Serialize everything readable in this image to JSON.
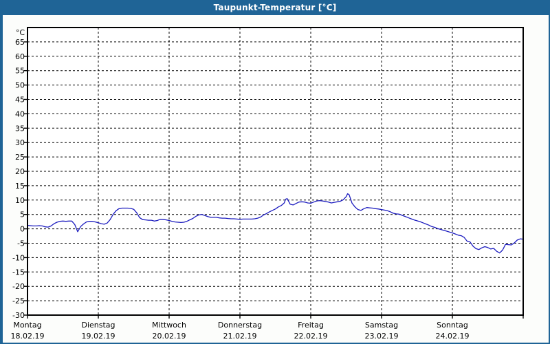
{
  "window": {
    "title": "Taupunkt-Temperatur [°C]"
  },
  "colors": {
    "titlebar_bg": "#1f6496",
    "titlebar_text": "#ffffff",
    "frame_border": "#1f6496",
    "page_bg": "#fcfdfb",
    "plot_bg": "#ffffff",
    "grid": "#000000",
    "axis": "#000000",
    "label": "#000000",
    "line": "#1a1abe"
  },
  "chart_data": {
    "type": "line",
    "title": "Taupunkt-Temperatur [°C]",
    "unit_label": "°C",
    "ylabel": "°C",
    "xlabel": "",
    "ylim": [
      -30,
      70
    ],
    "ytick_step": 5,
    "yticks": [
      65,
      60,
      55,
      50,
      45,
      40,
      35,
      30,
      25,
      20,
      15,
      10,
      5,
      0,
      -5,
      -10,
      -15,
      -20,
      -25,
      -30
    ],
    "x_unit": "hours_from_monday_00",
    "xlim": [
      0,
      168
    ],
    "grid": "dashed",
    "legend": "none",
    "days": [
      {
        "name": "Montag",
        "date": "18.02.19"
      },
      {
        "name": "Dienstag",
        "date": "19.02.19"
      },
      {
        "name": "Mittwoch",
        "date": "20.02.19"
      },
      {
        "name": "Donnerstag",
        "date": "21.02.19"
      },
      {
        "name": "Freitag",
        "date": "22.02.19"
      },
      {
        "name": "Samstag",
        "date": "23.02.19"
      },
      {
        "name": "Sonntag",
        "date": "24.02.19"
      }
    ],
    "series": [
      {
        "name": "Taupunkt",
        "points": [
          [
            0,
            1.2
          ],
          [
            1,
            1.1
          ],
          [
            2,
            1.0
          ],
          [
            3,
            1.0
          ],
          [
            4,
            1.1
          ],
          [
            5,
            1.0
          ],
          [
            6,
            0.7
          ],
          [
            7,
            0.6
          ],
          [
            8,
            1.0
          ],
          [
            9,
            1.8
          ],
          [
            10,
            2.3
          ],
          [
            11,
            2.6
          ],
          [
            12,
            2.7
          ],
          [
            13,
            2.6
          ],
          [
            14,
            2.7
          ],
          [
            15,
            2.7
          ],
          [
            16,
            1.5
          ],
          [
            17,
            -1.0
          ],
          [
            18,
            0.8
          ],
          [
            19,
            1.7
          ],
          [
            20,
            2.4
          ],
          [
            21,
            2.6
          ],
          [
            22,
            2.6
          ],
          [
            23,
            2.4
          ],
          [
            24,
            2.1
          ],
          [
            25,
            1.8
          ],
          [
            26,
            1.6
          ],
          [
            27,
            2.0
          ],
          [
            28,
            3.2
          ],
          [
            29,
            5.0
          ],
          [
            30,
            6.3
          ],
          [
            31,
            7.0
          ],
          [
            32,
            7.2
          ],
          [
            33,
            7.2
          ],
          [
            34,
            7.2
          ],
          [
            35,
            7.1
          ],
          [
            36,
            6.8
          ],
          [
            37,
            5.6
          ],
          [
            38,
            3.9
          ],
          [
            39,
            3.2
          ],
          [
            40,
            3.1
          ],
          [
            41,
            3.0
          ],
          [
            42,
            3.0
          ],
          [
            43,
            2.7
          ],
          [
            44,
            2.9
          ],
          [
            45,
            3.3
          ],
          [
            46,
            3.3
          ],
          [
            47,
            3.1
          ],
          [
            48,
            2.9
          ],
          [
            49,
            2.6
          ],
          [
            50,
            2.4
          ],
          [
            51,
            2.3
          ],
          [
            52,
            2.2
          ],
          [
            53,
            2.3
          ],
          [
            54,
            2.6
          ],
          [
            55,
            3.1
          ],
          [
            56,
            3.6
          ],
          [
            57,
            4.3
          ],
          [
            58,
            4.8
          ],
          [
            59,
            5.0
          ],
          [
            60,
            4.7
          ],
          [
            61,
            4.3
          ],
          [
            62,
            4.0
          ],
          [
            63,
            4.0
          ],
          [
            64,
            4.0
          ],
          [
            65,
            3.8
          ],
          [
            66,
            3.7
          ],
          [
            67,
            3.7
          ],
          [
            68,
            3.6
          ],
          [
            69,
            3.5
          ],
          [
            70,
            3.5
          ],
          [
            71,
            3.4
          ],
          [
            72,
            3.3
          ],
          [
            73,
            3.4
          ],
          [
            74,
            3.4
          ],
          [
            75,
            3.4
          ],
          [
            76,
            3.4
          ],
          [
            77,
            3.5
          ],
          [
            78,
            3.7
          ],
          [
            79,
            4.1
          ],
          [
            80,
            4.8
          ],
          [
            81,
            5.3
          ],
          [
            82,
            5.9
          ],
          [
            83,
            6.4
          ],
          [
            84,
            6.9
          ],
          [
            85,
            7.6
          ],
          [
            86,
            8.1
          ],
          [
            87,
            9.0
          ],
          [
            87.5,
            10.3
          ],
          [
            88,
            10.5
          ],
          [
            88.5,
            9.6
          ],
          [
            89,
            8.6
          ],
          [
            90,
            8.3
          ],
          [
            91,
            8.8
          ],
          [
            92,
            9.3
          ],
          [
            93,
            9.4
          ],
          [
            94,
            9.3
          ],
          [
            95,
            9.0
          ],
          [
            96,
            8.9
          ],
          [
            97,
            9.3
          ],
          [
            98,
            9.7
          ],
          [
            99,
            9.8
          ],
          [
            100,
            9.7
          ],
          [
            101,
            9.5
          ],
          [
            102,
            9.3
          ],
          [
            103,
            9.0
          ],
          [
            104,
            9.2
          ],
          [
            105,
            9.4
          ],
          [
            106,
            9.6
          ],
          [
            107,
            10.1
          ],
          [
            108,
            11.2
          ],
          [
            108.5,
            12.2
          ],
          [
            109,
            11.9
          ],
          [
            110,
            8.9
          ],
          [
            111,
            7.6
          ],
          [
            112,
            6.7
          ],
          [
            113,
            6.4
          ],
          [
            114,
            7.0
          ],
          [
            115,
            7.4
          ],
          [
            116,
            7.3
          ],
          [
            117,
            7.2
          ],
          [
            118,
            7.0
          ],
          [
            119,
            6.9
          ],
          [
            120,
            6.7
          ],
          [
            121,
            6.5
          ],
          [
            122,
            6.3
          ],
          [
            123,
            5.9
          ],
          [
            124,
            5.4
          ],
          [
            125,
            5.2
          ],
          [
            126,
            5.1
          ],
          [
            127,
            4.7
          ],
          [
            128,
            4.3
          ],
          [
            129,
            3.9
          ],
          [
            130,
            3.5
          ],
          [
            131,
            3.1
          ],
          [
            132,
            2.8
          ],
          [
            133,
            2.5
          ],
          [
            134,
            2.1
          ],
          [
            135,
            1.7
          ],
          [
            136,
            1.3
          ],
          [
            137,
            0.8
          ],
          [
            138,
            0.5
          ],
          [
            139,
            0.1
          ],
          [
            140,
            -0.2
          ],
          [
            141,
            -0.5
          ],
          [
            142,
            -0.8
          ],
          [
            143,
            -1.1
          ],
          [
            144,
            -1.4
          ],
          [
            145,
            -1.8
          ],
          [
            146,
            -2.2
          ],
          [
            147,
            -2.4
          ],
          [
            148,
            -3.0
          ],
          [
            149,
            -4.3
          ],
          [
            150,
            -4.6
          ],
          [
            151,
            -6.0
          ],
          [
            152,
            -6.9
          ],
          [
            153,
            -7.2
          ],
          [
            154,
            -6.6
          ],
          [
            155,
            -6.2
          ],
          [
            156,
            -6.5
          ],
          [
            157,
            -7.0
          ],
          [
            158,
            -6.8
          ],
          [
            159,
            -7.8
          ],
          [
            160,
            -8.4
          ],
          [
            161,
            -7.4
          ],
          [
            162,
            -5.4
          ],
          [
            163,
            -5.5
          ],
          [
            164,
            -5.6
          ],
          [
            165,
            -4.9
          ],
          [
            166,
            -3.9
          ],
          [
            167,
            -3.5
          ],
          [
            168,
            -3.6
          ]
        ]
      }
    ]
  }
}
